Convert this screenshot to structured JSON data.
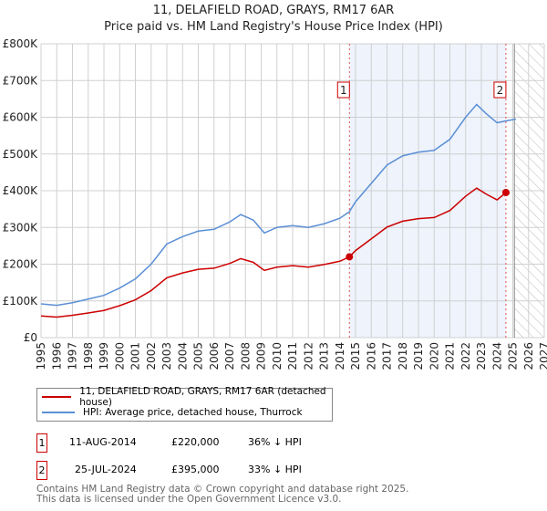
{
  "chart_data": {
    "type": "line",
    "title": "11, DELAFIELD ROAD, GRAYS, RM17 6AR",
    "subtitle": "Price paid vs. HM Land Registry's House Price Index (HPI)",
    "xlim": [
      1995,
      2027
    ],
    "ylim": [
      0,
      800000
    ],
    "yticks": [
      "£0",
      "£100K",
      "£200K",
      "£300K",
      "£400K",
      "£500K",
      "£600K",
      "£700K",
      "£800K"
    ],
    "xticks": [
      "1995",
      "1996",
      "1997",
      "1998",
      "1999",
      "2000",
      "2001",
      "2002",
      "2003",
      "2004",
      "2005",
      "2006",
      "2007",
      "2008",
      "2009",
      "2010",
      "2011",
      "2012",
      "2013",
      "2014",
      "2015",
      "2016",
      "2017",
      "2018",
      "2019",
      "2020",
      "2021",
      "2022",
      "2023",
      "2024",
      "2025",
      "2026",
      "2027"
    ],
    "series": [
      {
        "name": "11, DELAFIELD ROAD, GRAYS, RM17 6AR (detached house)",
        "color": "#cc0000",
        "x": [
          1995,
          1996,
          1997,
          1998,
          1999,
          2000,
          2001,
          2002,
          2003,
          2004,
          2005,
          2006,
          2007,
          2007.7,
          2008.5,
          2009.2,
          2010,
          2011,
          2012,
          2013,
          2014,
          2014.61,
          2015,
          2016,
          2017,
          2018,
          2019,
          2020,
          2021,
          2022,
          2022.7,
          2023.3,
          2024,
          2024.56,
          2024.8
        ],
        "y": [
          59000,
          56000,
          61000,
          67000,
          74000,
          87000,
          103000,
          128000,
          163000,
          176000,
          186000,
          189000,
          202000,
          215000,
          205000,
          183000,
          192000,
          196000,
          192000,
          199000,
          208000,
          220000,
          237000,
          269000,
          301000,
          317000,
          324000,
          327000,
          346000,
          385000,
          407000,
          391000,
          375000,
          395000,
          393000
        ]
      },
      {
        "name": "HPI: Average price, detached house, Thurrock",
        "color": "#5b8fd6",
        "x": [
          1995,
          1996,
          1997,
          1998,
          1999,
          2000,
          2001,
          2002,
          2003,
          2004,
          2005,
          2006,
          2007,
          2007.7,
          2008.5,
          2009.2,
          2010,
          2011,
          2012,
          2013,
          2014,
          2014.61,
          2015,
          2016,
          2017,
          2018,
          2019,
          2020,
          2021,
          2022,
          2022.7,
          2023.3,
          2024,
          2024.56,
          2025.2
        ],
        "y": [
          92000,
          88000,
          95000,
          105000,
          115000,
          135000,
          160000,
          200000,
          255000,
          275000,
          290000,
          295000,
          315000,
          335000,
          320000,
          285000,
          300000,
          305000,
          300000,
          310000,
          325000,
          343000,
          370000,
          420000,
          470000,
          495000,
          505000,
          510000,
          540000,
          600000,
          635000,
          610000,
          585000,
          590000,
          595000
        ]
      }
    ],
    "annotations": [
      {
        "label": "1",
        "x": 2014.61,
        "y": 220000,
        "date": "11-AUG-2014",
        "price": "£220,000",
        "hpi": "36% ↓ HPI"
      },
      {
        "label": "2",
        "x": 2024.56,
        "y": 395000,
        "date": "25-JUL-2024",
        "price": "£395,000",
        "hpi": "33% ↓ HPI"
      }
    ],
    "shaded_range": [
      2014.61,
      2024.56
    ],
    "forecast_hatch_from": 2025.1,
    "grid": true,
    "legend_placement": "below"
  },
  "footer": [
    "Contains HM Land Registry data © Crown copyright and database right 2025.",
    "This data is licensed under the Open Government Licence v3.0."
  ]
}
